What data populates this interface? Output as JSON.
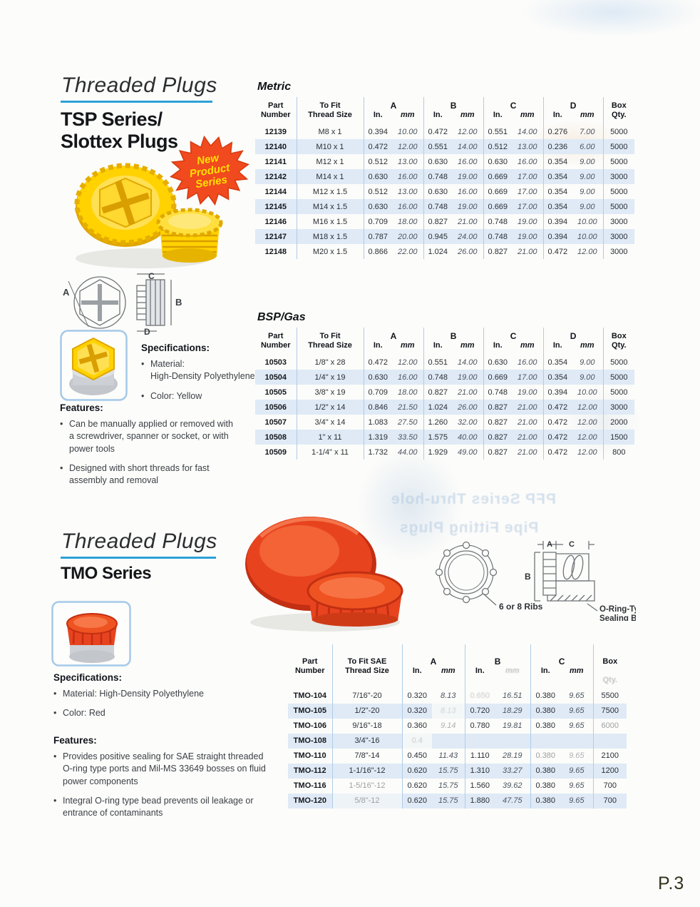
{
  "page": {
    "page_number": "P.3"
  },
  "colors": {
    "accent_blue": "#2da0d8",
    "table_line": "#aecde6",
    "stripe": "#dfeaf6",
    "badge_orange": "#f04a1e",
    "badge_text": "#ffe000",
    "plug_yellow": "#ffd200",
    "plug_yellow_dark": "#dfa600",
    "plug_red": "#e8431f",
    "plug_red_dark": "#c22f12"
  },
  "tsp_section": {
    "title": "Threaded Plugs",
    "series_line1": "TSP Series/",
    "series_line2": "Slottex Plugs",
    "badge_line1": "New",
    "badge_line2": "Product",
    "badge_line3": "Series",
    "specifications_heading": "Specifications:",
    "spec_items": [
      "Material:\nHigh-Density Polyethylene",
      "Color: Yellow"
    ],
    "features_heading": "Features:",
    "feature_items": [
      "Can be manually applied or removed with a screwdriver, spanner or socket, or with power tools",
      "Designed with short threads for fast assembly and removal"
    ],
    "diagram_labels": {
      "a": "A",
      "b": "B",
      "c": "C",
      "d": "D"
    }
  },
  "tmo_section": {
    "title": "Threaded Plugs",
    "series": "TMO Series",
    "specifications_heading": "Specifications:",
    "spec_items": [
      "Material: High-Density Polyethylene",
      "Color: Red"
    ],
    "features_heading": "Features:",
    "feature_items": [
      "Provides positive sealing for SAE straight threaded O-ring type ports and Mil-MS 33649 bosses on fluid power components",
      "Integral O-ring type bead prevents oil leakage or entrance of contaminants"
    ],
    "diagram_labels": {
      "a": "A",
      "b": "B",
      "c": "C",
      "ribs": "6 or 8 Ribs",
      "bead": "O-Ring-Type\nSealing Bead"
    }
  },
  "tables": {
    "metric": {
      "label": "Metric",
      "headers": {
        "part": "Part\nNumber",
        "thread": "To Fit\nThread Size",
        "a": "A",
        "b": "B",
        "c": "C",
        "d": "D",
        "in": "In.",
        "mm": "mm",
        "qty": "Box\nQty."
      },
      "rows": [
        {
          "part": "12139",
          "thread": "M8 x 1",
          "a_in": "0.394",
          "a_mm": "10.00",
          "b_in": "0.472",
          "b_mm": "12.00",
          "c_in": "0.551",
          "c_mm": "14.00",
          "d_in": "0.276",
          "d_mm": "7.00",
          "qty": "5000"
        },
        {
          "part": "12140",
          "thread": "M10 x 1",
          "a_in": "0.472",
          "a_mm": "12.00",
          "b_in": "0.551",
          "b_mm": "14.00",
          "c_in": "0.512",
          "c_mm": "13.00",
          "d_in": "0.236",
          "d_mm": "6.00",
          "qty": "5000"
        },
        {
          "part": "12141",
          "thread": "M12 x 1",
          "a_in": "0.512",
          "a_mm": "13.00",
          "b_in": "0.630",
          "b_mm": "16.00",
          "c_in": "0.630",
          "c_mm": "16.00",
          "d_in": "0.354",
          "d_mm": "9.00",
          "qty": "5000"
        },
        {
          "part": "12142",
          "thread": "M14 x 1",
          "a_in": "0.630",
          "a_mm": "16.00",
          "b_in": "0.748",
          "b_mm": "19.00",
          "c_in": "0.669",
          "c_mm": "17.00",
          "d_in": "0.354",
          "d_mm": "9.00",
          "qty": "3000"
        },
        {
          "part": "12144",
          "thread": "M12 x 1.5",
          "a_in": "0.512",
          "a_mm": "13.00",
          "b_in": "0.630",
          "b_mm": "16.00",
          "c_in": "0.669",
          "c_mm": "17.00",
          "d_in": "0.354",
          "d_mm": "9.00",
          "qty": "5000"
        },
        {
          "part": "12145",
          "thread": "M14 x 1.5",
          "a_in": "0.630",
          "a_mm": "16.00",
          "b_in": "0.748",
          "b_mm": "19.00",
          "c_in": "0.669",
          "c_mm": "17.00",
          "d_in": "0.354",
          "d_mm": "9.00",
          "qty": "5000"
        },
        {
          "part": "12146",
          "thread": "M16 x 1.5",
          "a_in": "0.709",
          "a_mm": "18.00",
          "b_in": "0.827",
          "b_mm": "21.00",
          "c_in": "0.748",
          "c_mm": "19.00",
          "d_in": "0.394",
          "d_mm": "10.00",
          "qty": "3000"
        },
        {
          "part": "12147",
          "thread": "M18 x 1.5",
          "a_in": "0.787",
          "a_mm": "20.00",
          "b_in": "0.945",
          "b_mm": "24.00",
          "c_in": "0.748",
          "c_mm": "19.00",
          "d_in": "0.394",
          "d_mm": "10.00",
          "qty": "3000"
        },
        {
          "part": "12148",
          "thread": "M20 x 1.5",
          "a_in": "0.866",
          "a_mm": "22.00",
          "b_in": "1.024",
          "b_mm": "26.00",
          "c_in": "0.827",
          "c_mm": "21.00",
          "d_in": "0.472",
          "d_mm": "12.00",
          "qty": "3000"
        }
      ]
    },
    "bsp": {
      "label": "BSP/Gas",
      "headers": {
        "part": "Part\nNumber",
        "thread": "To Fit\nThread Size",
        "a": "A",
        "b": "B",
        "c": "C",
        "d": "D",
        "in": "In.",
        "mm": "mm",
        "qty": "Box\nQty."
      },
      "rows": [
        {
          "part": "10503",
          "thread": "1/8\" x 28",
          "a_in": "0.472",
          "a_mm": "12.00",
          "b_in": "0.551",
          "b_mm": "14.00",
          "c_in": "0.630",
          "c_mm": "16.00",
          "d_in": "0.354",
          "d_mm": "9.00",
          "qty": "5000"
        },
        {
          "part": "10504",
          "thread": "1/4\" x 19",
          "a_in": "0.630",
          "a_mm": "16.00",
          "b_in": "0.748",
          "b_mm": "19.00",
          "c_in": "0.669",
          "c_mm": "17.00",
          "d_in": "0.354",
          "d_mm": "9.00",
          "qty": "5000"
        },
        {
          "part": "10505",
          "thread": "3/8\" x 19",
          "a_in": "0.709",
          "a_mm": "18.00",
          "b_in": "0.827",
          "b_mm": "21.00",
          "c_in": "0.748",
          "c_mm": "19.00",
          "d_in": "0.394",
          "d_mm": "10.00",
          "qty": "5000"
        },
        {
          "part": "10506",
          "thread": "1/2\" x 14",
          "a_in": "0.846",
          "a_mm": "21.50",
          "b_in": "1.024",
          "b_mm": "26.00",
          "c_in": "0.827",
          "c_mm": "21.00",
          "d_in": "0.472",
          "d_mm": "12.00",
          "qty": "3000"
        },
        {
          "part": "10507",
          "thread": "3/4\" x 14",
          "a_in": "1.083",
          "a_mm": "27.50",
          "b_in": "1.260",
          "b_mm": "32.00",
          "c_in": "0.827",
          "c_mm": "21.00",
          "d_in": "0.472",
          "d_mm": "12.00",
          "qty": "2000"
        },
        {
          "part": "10508",
          "thread": "1\" x 11",
          "a_in": "1.319",
          "a_mm": "33.50",
          "b_in": "1.575",
          "b_mm": "40.00",
          "c_in": "0.827",
          "c_mm": "21.00",
          "d_in": "0.472",
          "d_mm": "12.00",
          "qty": "1500"
        },
        {
          "part": "10509",
          "thread": "1-1/4\" x 11",
          "a_in": "1.732",
          "a_mm": "44.00",
          "b_in": "1.929",
          "b_mm": "49.00",
          "c_in": "0.827",
          "c_mm": "21.00",
          "d_in": "0.472",
          "d_mm": "12.00",
          "qty": "800"
        }
      ]
    },
    "tmo": {
      "headers": {
        "part": "Part\nNumber",
        "thread": "To Fit SAE\nThread Size",
        "a": "A",
        "b": "B",
        "c": "C",
        "in": "In.",
        "mm": "mm",
        "qty_line1": "Box",
        "qty_line2": "Qty."
      },
      "rows": [
        {
          "part": "TMO-104",
          "thread": "7/16\"-20",
          "a_in": "0.320",
          "a_mm": "8.13",
          "b_in": "0.650",
          "b_mm": "16.51",
          "c_in": "0.380",
          "c_mm": "9.65",
          "qty": "5500",
          "fade": [
            "b_in"
          ]
        },
        {
          "part": "TMO-105",
          "thread": "1/2\"-20",
          "a_in": "0.320",
          "a_mm": "8.13",
          "b_in": "0.720",
          "b_mm": "18.29",
          "c_in": "0.380",
          "c_mm": "9.65",
          "qty": "7500",
          "fade": [
            "a_mm"
          ]
        },
        {
          "part": "TMO-106",
          "thread": "9/16\"-18",
          "a_in": "0.360",
          "a_mm": "9.14",
          "b_in": "0.780",
          "b_mm": "19.81",
          "c_in": "0.380",
          "c_mm": "9.65",
          "qty": "6000",
          "fade2": [
            "a_mm",
            "qty"
          ]
        },
        {
          "part": "TMO-108",
          "thread": "3/4\"-16",
          "a_in": "0.4",
          "a_mm": "",
          "b_in": "",
          "b_mm": "",
          "c_in": "",
          "c_mm": "",
          "qty": "",
          "fade": [
            "a_in"
          ]
        },
        {
          "part": "TMO-110",
          "thread": "7/8\"-14",
          "a_in": "0.450",
          "a_mm": "11.43",
          "b_in": "1.110",
          "b_mm": "28.19",
          "c_in": "0.380",
          "c_mm": "9.65",
          "qty": "2100",
          "fade2": [
            "c_in",
            "c_mm"
          ]
        },
        {
          "part": "TMO-112",
          "thread": "1-1/16\"-12",
          "a_in": "0.620",
          "a_mm": "15.75",
          "b_in": "1.310",
          "b_mm": "33.27",
          "c_in": "0.380",
          "c_mm": "9.65",
          "qty": "1200"
        },
        {
          "part": "TMO-116",
          "thread": "1-5/16\"-12",
          "a_in": "0.620",
          "a_mm": "15.75",
          "b_in": "1.560",
          "b_mm": "39.62",
          "c_in": "0.380",
          "c_mm": "9.65",
          "qty": "700",
          "fade2": [
            "thread"
          ]
        },
        {
          "part": "TMO-120",
          "thread": "5/8\"-12",
          "a_in": "0.620",
          "a_mm": "15.75",
          "b_in": "1.880",
          "b_mm": "47.75",
          "c_in": "0.380",
          "c_mm": "9.65",
          "qty": "700",
          "fade2": [
            "thread"
          ]
        }
      ]
    }
  },
  "showthrough": {
    "line1": "PFP Series Thru-hole",
    "line2": "Pipe Fitting Plugs"
  }
}
